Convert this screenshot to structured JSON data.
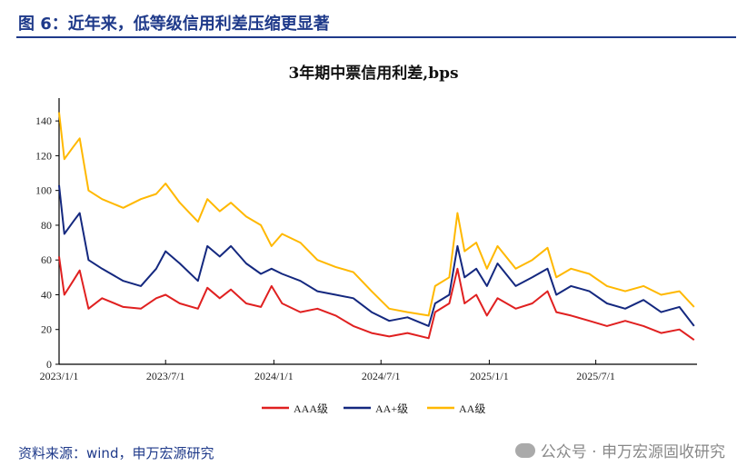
{
  "header": {
    "figure_title": "图 6：近年来，低等级信用利差压缩更显著"
  },
  "footer": {
    "source": "资料来源：wind，申万宏源研究",
    "watermark": "公众号 · 申万宏源固收研究"
  },
  "chart_data": {
    "type": "line",
    "title": "3年期中票信用利差,bps",
    "xlabel": "",
    "ylabel": "",
    "ylim": [
      0,
      150
    ],
    "yticks": [
      0,
      20,
      40,
      60,
      80,
      100,
      120,
      140
    ],
    "xlim": [
      "2023-01-01",
      "2025-12-20"
    ],
    "xticks": [
      "2023/1/1",
      "2023/7/1",
      "2024/1/1",
      "2024/7/1",
      "2025/1/1",
      "2025/7/1"
    ],
    "grid": false,
    "legend": "bottom",
    "x": [
      "2023-01-01",
      "2023-01-10",
      "2023-01-25",
      "2023-02-05",
      "2023-02-20",
      "2023-03-15",
      "2023-04-20",
      "2023-05-20",
      "2023-06-15",
      "2023-07-01",
      "2023-07-25",
      "2023-08-25",
      "2023-09-10",
      "2023-10-01",
      "2023-10-20",
      "2023-11-15",
      "2023-12-10",
      "2023-12-28",
      "2024-01-15",
      "2024-02-15",
      "2024-03-15",
      "2024-04-15",
      "2024-05-15",
      "2024-06-15",
      "2024-07-15",
      "2024-08-15",
      "2024-09-20",
      "2024-10-01",
      "2024-10-25",
      "2024-11-08",
      "2024-11-20",
      "2024-12-10",
      "2024-12-28",
      "2025-01-15",
      "2025-02-15",
      "2025-03-15",
      "2025-04-10",
      "2025-04-25",
      "2025-05-20",
      "2025-06-20",
      "2025-07-20",
      "2025-08-20",
      "2025-09-20",
      "2025-10-20",
      "2025-11-20",
      "2025-12-15"
    ],
    "series": [
      {
        "name": "AAA级",
        "color": "#e02020",
        "values": [
          62,
          40,
          48,
          54,
          32,
          38,
          33,
          32,
          38,
          40,
          35,
          32,
          44,
          38,
          43,
          35,
          33,
          45,
          35,
          30,
          32,
          28,
          22,
          18,
          16,
          18,
          15,
          30,
          35,
          55,
          35,
          40,
          28,
          38,
          32,
          35,
          42,
          30,
          28,
          25,
          22,
          25,
          22,
          18,
          20,
          14
        ]
      },
      {
        "name": "AA+级",
        "color": "#14287f",
        "values": [
          103,
          75,
          82,
          87,
          60,
          55,
          48,
          45,
          55,
          65,
          58,
          48,
          68,
          62,
          68,
          58,
          52,
          55,
          52,
          48,
          42,
          40,
          38,
          30,
          25,
          27,
          22,
          35,
          40,
          68,
          50,
          55,
          45,
          58,
          45,
          50,
          55,
          40,
          45,
          42,
          35,
          32,
          37,
          30,
          33,
          22
        ]
      },
      {
        "name": "AA级",
        "color": "#ffb800",
        "values": [
          145,
          118,
          125,
          130,
          100,
          95,
          90,
          95,
          98,
          104,
          93,
          82,
          95,
          88,
          93,
          85,
          80,
          68,
          75,
          70,
          60,
          56,
          53,
          42,
          32,
          30,
          28,
          45,
          50,
          87,
          65,
          70,
          55,
          68,
          55,
          60,
          67,
          50,
          55,
          52,
          45,
          42,
          45,
          40,
          42,
          33
        ]
      }
    ]
  }
}
